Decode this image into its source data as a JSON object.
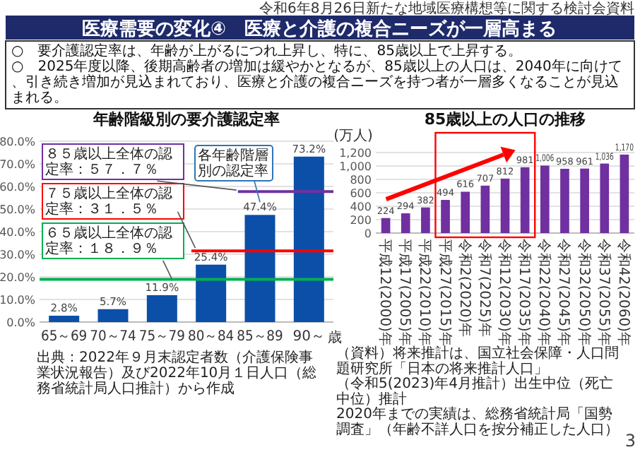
{
  "chart_data": [
    {
      "type": "bar",
      "title": "年齢階級別の要介護認定率",
      "xlabel": "歳",
      "categories": [
        "65～69",
        "70～74",
        "75～79",
        "80～84",
        "85～89",
        "90～"
      ],
      "values": [
        2.8,
        5.7,
        11.9,
        25.4,
        47.4,
        73.2
      ],
      "value_labels": [
        "2.8%",
        "5.7%",
        "11.9%",
        "25.4%",
        "47.4%",
        "73.2%"
      ],
      "color": "#0b4fa8",
      "ylim": [
        0,
        80
      ],
      "yticks": [
        {
          "value": 0,
          "label": "0.0%"
        },
        {
          "value": 10,
          "label": "10.0%"
        },
        {
          "value": 20,
          "label": "20.0%"
        },
        {
          "value": 30,
          "label": "30.0%"
        },
        {
          "value": 40,
          "label": "40.0%"
        },
        {
          "value": 50,
          "label": "50.0%"
        },
        {
          "value": 60,
          "label": "60.0%"
        },
        {
          "value": 70,
          "label": "70.0%"
        },
        {
          "value": 80,
          "label": "80.0%"
        }
      ],
      "grid": "y",
      "ref_lines": [
        {
          "axis": "y",
          "value": 57.7,
          "label": "８５歳以上全体の認定率：５７．７％",
          "color": "#7030a0"
        },
        {
          "axis": "y",
          "value": 31.5,
          "label": "７５歳以上全体の認定率：３１．５％",
          "color": "#ff0000"
        },
        {
          "axis": "y",
          "value": 18.9,
          "label": "６５歳以上全体の認定率：１８．９％",
          "color": "#00b050"
        }
      ],
      "annotations": [
        "令和6年8月26日新たな地域医療構想等に関する検討会資料",
        "医療需要の変化④　医療と介護の複合ニーズが一層高まる",
        "○　要介護認定率は、年齢が上がるにつれ上昇し、特に、85歳以上で上昇する。",
        "○　2025年度以降、後期高齢者の増加は緩やかとなるが、85歳以上の人口は、2040年に向けて、引き続き増加が見込まれており、医療と介護の複合ニーズを持つ者が一層多くなることが見込まれる。",
        {
          "text": "各年齢階層別の認定率",
          "x": "85～89",
          "y": 47.4
        },
        "出典：2022年９月末認定者数（介護保険事業状況報告）及び2022年10月１日人口（総務省統計局人口推計）から作成"
      ]
    },
    {
      "type": "bar",
      "title": "85歳以上の人口の推移",
      "ylabel": "(万人)",
      "categories": [
        "平成12(2000)年",
        "平成17(2005)年",
        "平成22(2010)年",
        "平成27(2015)年",
        "令和2(2020)年",
        "令和7(2025)年",
        "令和12(2030)年",
        "令和17(2035)年",
        "令和22(2040)年",
        "令和27(2045)年",
        "令和32(2050)年",
        "令和37(2055)年",
        "令和42(2060)年"
      ],
      "values": [
        224,
        294,
        382,
        494,
        616,
        707,
        812,
        981,
        1006,
        958,
        961,
        1036,
        1170
      ],
      "value_labels": [
        "224",
        "294",
        "382",
        "494",
        "616",
        "707",
        "812",
        "981",
        "1,006",
        "958",
        "961",
        "1,036",
        "1,170"
      ],
      "color": "#7030a0",
      "ylim": [
        0,
        1200
      ],
      "yticks": [
        0,
        200,
        400,
        600,
        800,
        {
          "value": 1000,
          "label": "1,000"
        },
        {
          "value": 1200,
          "label": "1,200"
        }
      ],
      "grid": "y",
      "annotations": [
        "（資料）将来推計は、国立社会保障・人口問題研究所「日本の将来推計人口」",
        "（令和5(2023)年4月推計）出生中位（死亡中位）推計",
        "2020年までの実績は、総務省統計局「国勢調査」（年齢不詳人口を按分補正した人口）",
        "3"
      ]
    }
  ]
}
